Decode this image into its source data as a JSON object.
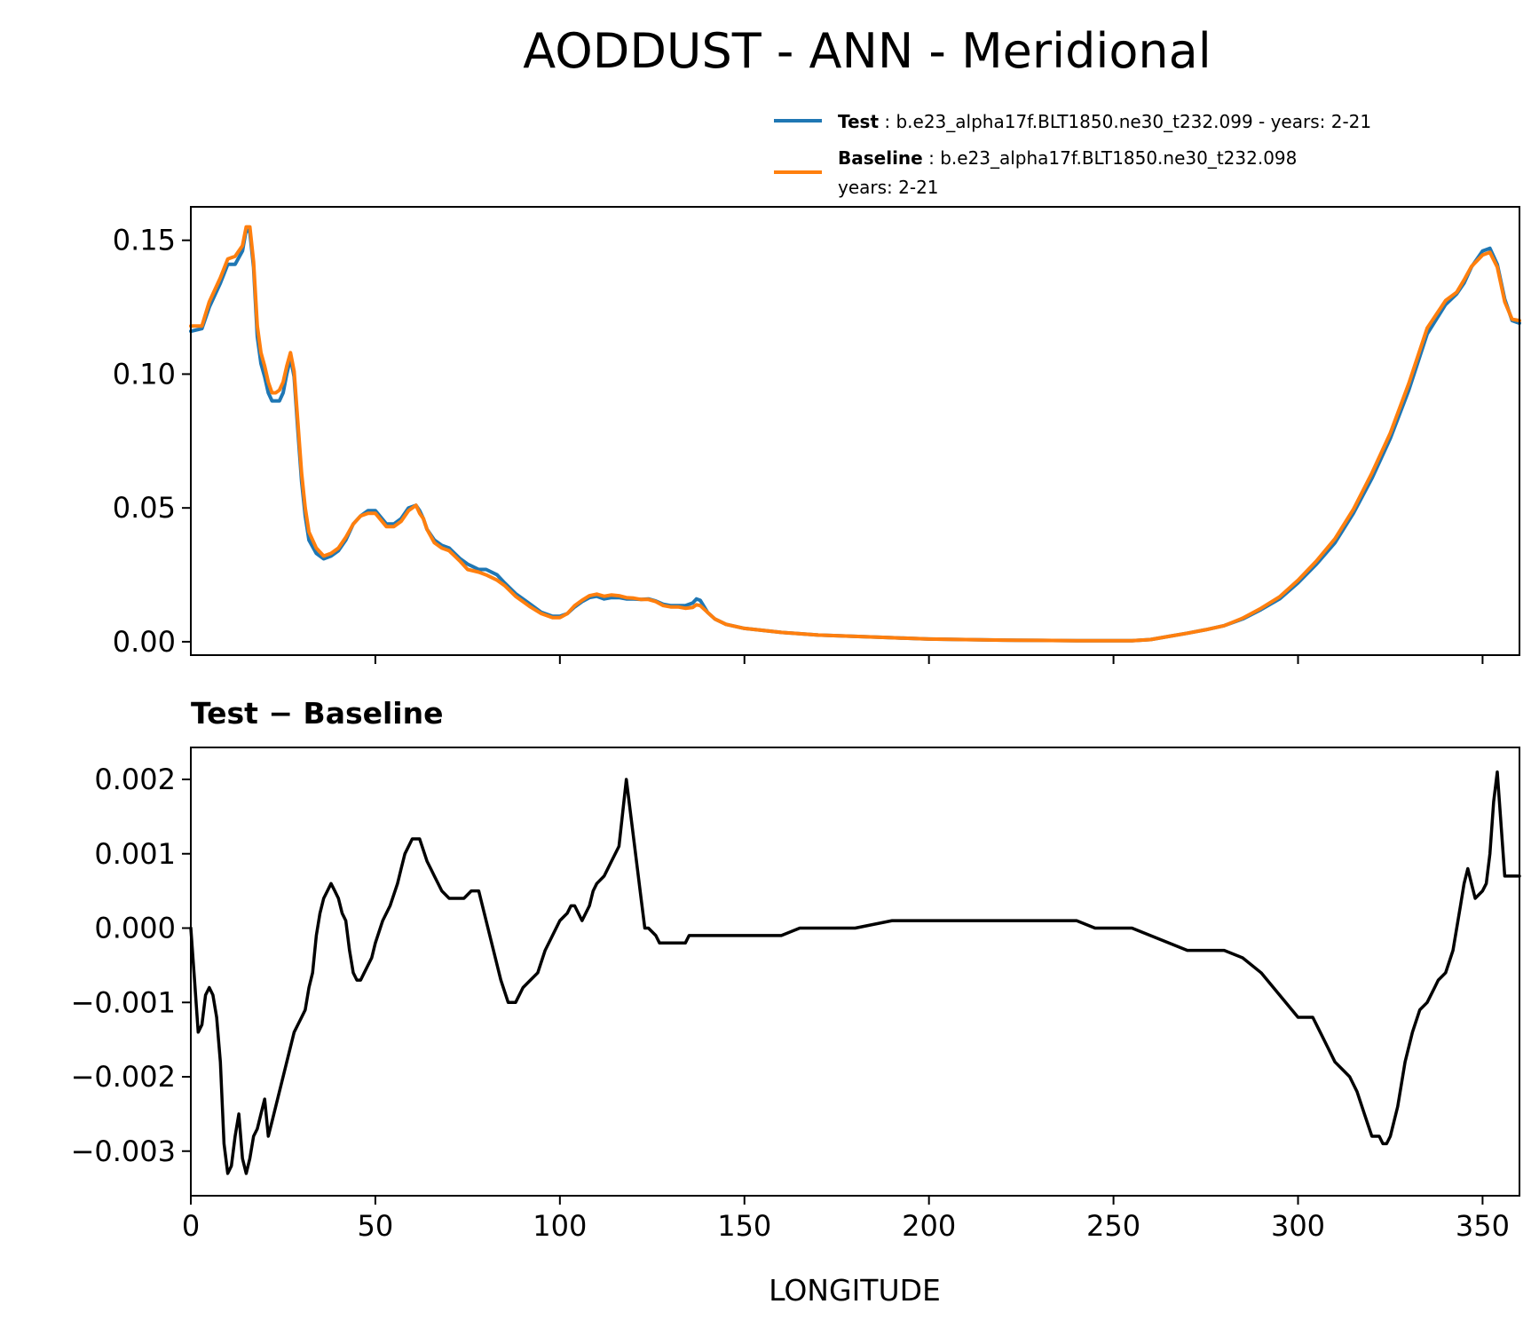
{
  "title": "AODDUST - ANN - Meridional",
  "colors": {
    "test": "#1f77b4",
    "baseline": "#ff7f0e",
    "diff": "#000000"
  },
  "legend": {
    "test_bold": "Test",
    "test_rest": " : b.e23_alpha17f.BLT1850.ne30_t232.099 - years: 2-21",
    "baseline_bold": "Baseline",
    "baseline_rest": " : b.e23_alpha17f.BLT1850.ne30_t232.098",
    "baseline_line2": "years: 2-21"
  },
  "chart_data": [
    {
      "type": "line",
      "title": "",
      "xlabel": "",
      "ylabel": "",
      "xlim": [
        0,
        360
      ],
      "ylim": [
        -0.005,
        0.1625
      ],
      "x_ticks": [
        50,
        100,
        150,
        200,
        250,
        300,
        350
      ],
      "y_ticks": [
        {
          "v": 0.0,
          "label": "0.00"
        },
        {
          "v": 0.05,
          "label": "0.05"
        },
        {
          "v": 0.1,
          "label": "0.10"
        },
        {
          "v": 0.15,
          "label": "0.15"
        }
      ],
      "series": [
        {
          "name": "Test",
          "x": [
            0,
            3,
            5,
            8,
            10,
            12,
            14,
            15,
            16,
            17,
            18,
            19,
            20,
            21,
            22,
            23,
            24,
            25,
            26,
            27,
            28,
            29,
            30,
            31,
            32,
            34,
            36,
            38,
            40,
            42,
            44,
            46,
            48,
            50,
            53,
            55,
            57,
            59,
            61,
            62,
            63,
            64,
            66,
            68,
            70,
            73,
            75,
            78,
            80,
            83,
            85,
            88,
            90,
            92,
            95,
            98,
            100,
            102,
            104,
            106,
            108,
            110,
            112,
            114,
            116,
            118,
            120,
            122,
            124,
            126,
            128,
            130,
            132,
            134,
            136,
            137,
            138,
            140,
            142,
            145,
            150,
            160,
            170,
            180,
            190,
            200,
            210,
            220,
            230,
            240,
            250,
            255,
            260,
            265,
            270,
            275,
            280,
            285,
            290,
            295,
            300,
            305,
            310,
            315,
            320,
            325,
            330,
            335,
            340,
            343,
            345,
            347,
            350,
            352,
            354,
            356,
            358,
            360
          ],
          "y": [
            0.116,
            0.117,
            0.125,
            0.134,
            0.141,
            0.141,
            0.146,
            0.154,
            0.153,
            0.14,
            0.114,
            0.104,
            0.099,
            0.093,
            0.09,
            0.09,
            0.09,
            0.093,
            0.1,
            0.106,
            0.099,
            0.079,
            0.06,
            0.047,
            0.038,
            0.033,
            0.031,
            0.032,
            0.034,
            0.038,
            0.044,
            0.047,
            0.049,
            0.049,
            0.044,
            0.044,
            0.046,
            0.05,
            0.051,
            0.049,
            0.046,
            0.042,
            0.038,
            0.036,
            0.035,
            0.031,
            0.029,
            0.027,
            0.027,
            0.025,
            0.022,
            0.018,
            0.016,
            0.014,
            0.011,
            0.0095,
            0.0095,
            0.0105,
            0.013,
            0.015,
            0.0165,
            0.017,
            0.016,
            0.0165,
            0.0165,
            0.016,
            0.016,
            0.0158,
            0.016,
            0.0152,
            0.014,
            0.0135,
            0.0135,
            0.0135,
            0.0145,
            0.016,
            0.0155,
            0.011,
            0.0085,
            0.0065,
            0.005,
            0.0035,
            0.0025,
            0.002,
            0.0015,
            0.001,
            0.0008,
            0.0006,
            0.0005,
            0.0004,
            0.0004,
            0.0004,
            0.0008,
            0.002,
            0.0032,
            0.0045,
            0.006,
            0.0085,
            0.012,
            0.016,
            0.022,
            0.029,
            0.037,
            0.048,
            0.061,
            0.076,
            0.094,
            0.115,
            0.126,
            0.13,
            0.134,
            0.14,
            0.146,
            0.147,
            0.141,
            0.128,
            0.12,
            0.119
          ]
        },
        {
          "name": "Baseline",
          "x": [
            0,
            3,
            5,
            8,
            10,
            12,
            14,
            15,
            16,
            17,
            18,
            19,
            20,
            21,
            22,
            23,
            24,
            25,
            26,
            27,
            28,
            29,
            30,
            31,
            32,
            34,
            36,
            38,
            40,
            42,
            44,
            46,
            48,
            50,
            53,
            55,
            57,
            59,
            61,
            62,
            63,
            64,
            66,
            68,
            70,
            73,
            75,
            78,
            80,
            83,
            85,
            88,
            90,
            92,
            95,
            98,
            100,
            102,
            104,
            106,
            108,
            110,
            112,
            114,
            116,
            118,
            120,
            122,
            124,
            126,
            128,
            130,
            132,
            134,
            136,
            137,
            138,
            140,
            142,
            145,
            150,
            160,
            170,
            180,
            190,
            200,
            210,
            220,
            230,
            240,
            250,
            255,
            260,
            265,
            270,
            275,
            280,
            285,
            290,
            295,
            300,
            305,
            310,
            315,
            320,
            325,
            330,
            335,
            340,
            343,
            345,
            347,
            350,
            352,
            354,
            356,
            358,
            360
          ],
          "y": [
            0.118,
            0.118,
            0.127,
            0.136,
            0.143,
            0.144,
            0.148,
            0.155,
            0.155,
            0.142,
            0.118,
            0.108,
            0.103,
            0.097,
            0.093,
            0.093,
            0.094,
            0.097,
            0.103,
            0.108,
            0.101,
            0.082,
            0.063,
            0.05,
            0.041,
            0.035,
            0.032,
            0.033,
            0.035,
            0.039,
            0.044,
            0.047,
            0.048,
            0.048,
            0.043,
            0.043,
            0.045,
            0.049,
            0.051,
            0.048,
            0.046,
            0.042,
            0.037,
            0.035,
            0.034,
            0.03,
            0.027,
            0.026,
            0.025,
            0.023,
            0.021,
            0.017,
            0.015,
            0.013,
            0.0105,
            0.009,
            0.009,
            0.0105,
            0.0135,
            0.0155,
            0.0172,
            0.0178,
            0.017,
            0.0175,
            0.0172,
            0.0165,
            0.0163,
            0.0158,
            0.0158,
            0.015,
            0.0135,
            0.013,
            0.013,
            0.0125,
            0.0128,
            0.0138,
            0.0135,
            0.011,
            0.0085,
            0.0065,
            0.005,
            0.0035,
            0.0025,
            0.002,
            0.0015,
            0.001,
            0.0008,
            0.0006,
            0.0005,
            0.0004,
            0.0004,
            0.0004,
            0.0008,
            0.002,
            0.0032,
            0.0045,
            0.006,
            0.0088,
            0.0125,
            0.0168,
            0.023,
            0.0302,
            0.0385,
            0.0495,
            0.063,
            0.078,
            0.0965,
            0.1172,
            0.1275,
            0.1306,
            0.1352,
            0.1402,
            0.1445,
            0.1455,
            0.14,
            0.127,
            0.1205,
            0.12
          ]
        }
      ]
    },
    {
      "type": "line",
      "title": "Test − Baseline",
      "xlabel": "LONGITUDE",
      "ylabel": "",
      "xlim": [
        0,
        360
      ],
      "ylim": [
        -0.0036,
        0.00243
      ],
      "x_ticks": [
        0,
        50,
        100,
        150,
        200,
        250,
        300,
        350
      ],
      "y_ticks": [
        {
          "v": -0.003,
          "label": "−0.003"
        },
        {
          "v": -0.002,
          "label": "−0.002"
        },
        {
          "v": -0.001,
          "label": "−0.001"
        },
        {
          "v": 0.0,
          "label": "0.000"
        },
        {
          "v": 0.001,
          "label": "0.001"
        },
        {
          "v": 0.002,
          "label": "0.002"
        }
      ],
      "series": [
        {
          "name": "Test − Baseline",
          "x": [
            0,
            1,
            2,
            3,
            4,
            5,
            6,
            7,
            8,
            9,
            10,
            11,
            12,
            13,
            14,
            15,
            16,
            17,
            18,
            19,
            20,
            21,
            22,
            24,
            26,
            28,
            29,
            30,
            31,
            32,
            33,
            34,
            35,
            36,
            37,
            38,
            39,
            40,
            41,
            42,
            43,
            44,
            45,
            46,
            47,
            48,
            49,
            50,
            52,
            54,
            56,
            57,
            58,
            60,
            62,
            64,
            65,
            66,
            68,
            70,
            72,
            74,
            76,
            78,
            80,
            82,
            84,
            86,
            88,
            90,
            92,
            94,
            96,
            98,
            100,
            102,
            103,
            104,
            106,
            108,
            109,
            110,
            112,
            114,
            116,
            118,
            120,
            122,
            123,
            124,
            126,
            127,
            128,
            130,
            132,
            134,
            135,
            136,
            137,
            138,
            139,
            140,
            142,
            144,
            146,
            150,
            155,
            160,
            165,
            170,
            180,
            190,
            200,
            205,
            210,
            220,
            230,
            240,
            245,
            250,
            255,
            260,
            265,
            270,
            275,
            280,
            285,
            290,
            295,
            300,
            302,
            304,
            306,
            308,
            310,
            312,
            314,
            316,
            318,
            320,
            322,
            323,
            324,
            325,
            327,
            329,
            331,
            333,
            335,
            337,
            338,
            340,
            342,
            344,
            345,
            346,
            347,
            348,
            350,
            351,
            352,
            353,
            354,
            355,
            356,
            357,
            358,
            359,
            360
          ],
          "y": [
            0.0,
            -0.0007,
            -0.0014,
            -0.0013,
            -0.0009,
            -0.0008,
            -0.0009,
            -0.0012,
            -0.0018,
            -0.0029,
            -0.0033,
            -0.0032,
            -0.0028,
            -0.0025,
            -0.0031,
            -0.0033,
            -0.0031,
            -0.0028,
            -0.0027,
            -0.0025,
            -0.0023,
            -0.0028,
            -0.0026,
            -0.0022,
            -0.0018,
            -0.0014,
            -0.0013,
            -0.0012,
            -0.0011,
            -0.0008,
            -0.0006,
            -0.0001,
            0.0002,
            0.0004,
            0.0005,
            0.0006,
            0.0005,
            0.0004,
            0.0002,
            0.0001,
            -0.0003,
            -0.0006,
            -0.0007,
            -0.0007,
            -0.0006,
            -0.0005,
            -0.0004,
            -0.0002,
            0.0001,
            0.0003,
            0.0006,
            0.0008,
            0.001,
            0.0012,
            0.0012,
            0.0009,
            0.0008,
            0.0007,
            0.0005,
            0.0004,
            0.0004,
            0.0004,
            0.0005,
            0.0005,
            0.0001,
            -0.0003,
            -0.0007,
            -0.001,
            -0.001,
            -0.0008,
            -0.0007,
            -0.0006,
            -0.0003,
            -0.0001,
            0.0001,
            0.0002,
            0.0003,
            0.0003,
            0.0001,
            0.0003,
            0.0005,
            0.0006,
            0.0007,
            0.0009,
            0.0011,
            0.002,
            0.0012,
            0.0004,
            0.0,
            0.0,
            -0.0001,
            -0.0002,
            -0.0002,
            -0.0002,
            -0.0002,
            -0.0002,
            -0.0001,
            -0.0001,
            -0.0001,
            -0.0001,
            -0.0001,
            -0.0001,
            -0.0001,
            -0.0001,
            -0.0001,
            -0.0001,
            -0.0001,
            -0.0001,
            0.0,
            0.0,
            0.0,
            0.0001,
            0.0001,
            0.0001,
            0.0001,
            0.0001,
            0.0001,
            0.0001,
            0.0,
            0.0,
            0.0,
            -0.0001,
            -0.0002,
            -0.0003,
            -0.0003,
            -0.0003,
            -0.0004,
            -0.0006,
            -0.0009,
            -0.0012,
            -0.0012,
            -0.0012,
            -0.0014,
            -0.0016,
            -0.0018,
            -0.0019,
            -0.002,
            -0.0022,
            -0.0025,
            -0.0028,
            -0.0028,
            -0.0029,
            -0.0029,
            -0.0028,
            -0.0024,
            -0.0018,
            -0.0014,
            -0.0011,
            -0.001,
            -0.0008,
            -0.0007,
            -0.0006,
            -0.0003,
            0.0003,
            0.0006,
            0.0008,
            0.0006,
            0.0004,
            0.0005,
            0.0006,
            0.001,
            0.0017,
            0.0021,
            0.0014,
            0.0007,
            0.0007,
            0.0007,
            0.0007,
            0.0007
          ]
        }
      ]
    }
  ]
}
